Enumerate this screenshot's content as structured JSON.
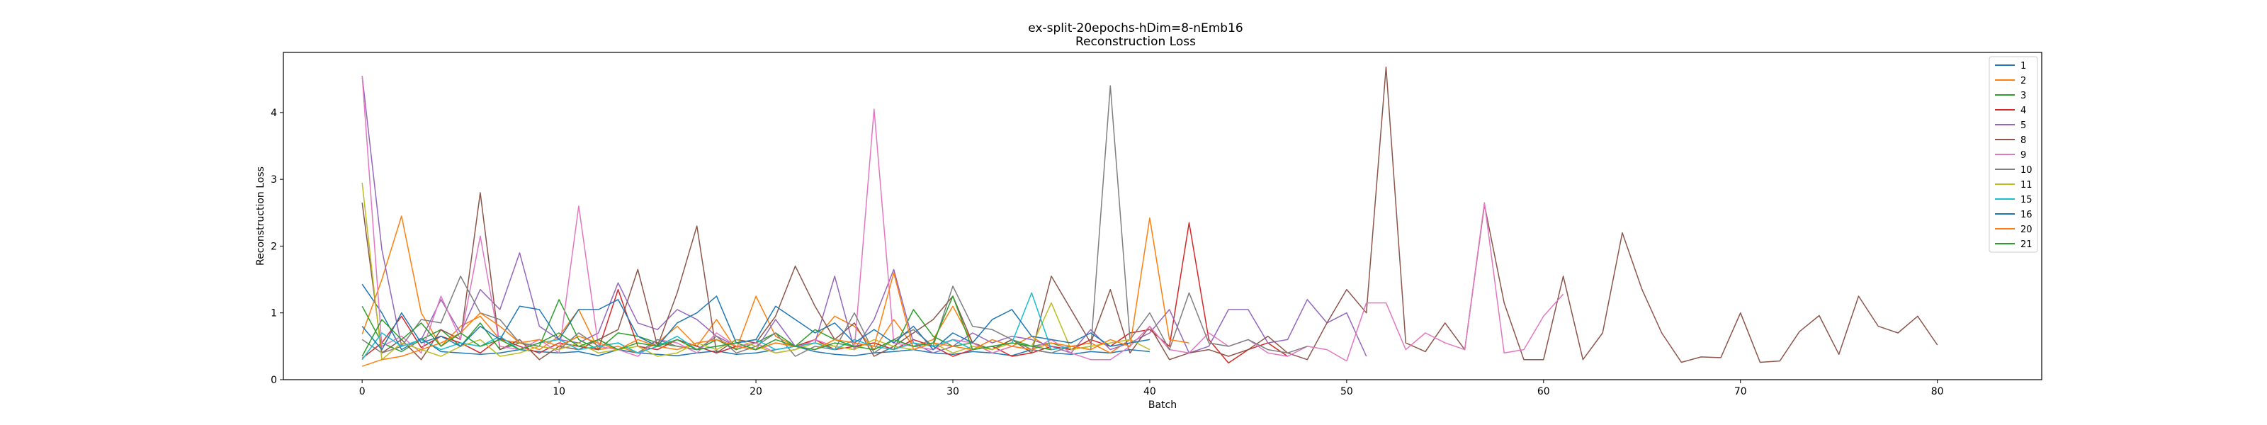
{
  "chart_data": {
    "type": "line",
    "title": "ex-split-20epochs-hDim=8-nEmb16",
    "subtitle": "Reconstruction Loss",
    "xlabel": "Batch",
    "ylabel": "Reconstruction Loss",
    "xlim": [
      -4,
      85.3
    ],
    "ylim": [
      0,
      4.9
    ],
    "xticks": [
      0,
      10,
      20,
      30,
      40,
      50,
      60,
      70,
      80
    ],
    "yticks": [
      0,
      1,
      2,
      3,
      4
    ],
    "grid": false,
    "legend_position": "top-right",
    "series": [
      {
        "name": "1",
        "color": "#1f77b4",
        "values": [
          1.43,
          1.0,
          0.45,
          0.62,
          0.42,
          0.4,
          0.38,
          0.4,
          0.45,
          0.42,
          0.4,
          0.42,
          0.36,
          0.45,
          0.4,
          0.38,
          0.36,
          0.4,
          0.43,
          0.38,
          0.4,
          0.45,
          0.5,
          0.42,
          0.38,
          0.36,
          0.4,
          0.42,
          0.45,
          0.4,
          0.38,
          0.42,
          0.4,
          0.36,
          0.45,
          0.4,
          0.38,
          0.42,
          0.4,
          0.45,
          0.42
        ]
      },
      {
        "name": "2",
        "color": "#ff7f0e",
        "values": [
          0.68,
          1.5,
          2.45,
          1.0,
          0.5,
          0.8,
          0.95,
          0.6,
          0.55,
          0.45,
          0.65,
          1.05,
          0.45,
          0.5,
          0.4,
          0.55,
          0.8,
          0.5,
          0.9,
          0.45,
          1.25,
          0.65,
          0.5,
          0.6,
          0.95,
          0.8,
          0.45,
          0.9,
          0.5,
          0.6,
          1.1,
          0.55,
          0.4,
          0.5,
          0.65,
          0.45,
          0.5,
          0.55,
          0.4,
          0.6
        ]
      },
      {
        "name": "3",
        "color": "#2ca02c",
        "values": [
          1.1,
          0.55,
          0.42,
          0.6,
          0.75,
          0.5,
          0.85,
          0.45,
          0.55,
          0.5,
          1.2,
          0.6,
          0.45,
          0.7,
          0.65,
          0.55,
          0.5,
          0.45,
          0.6,
          0.45,
          0.55,
          0.7,
          0.5,
          0.75,
          0.6,
          0.5,
          0.55,
          0.45,
          1.05,
          0.65,
          0.5,
          0.55,
          0.45,
          0.6,
          0.5,
          0.55,
          0.45,
          0.5
        ]
      },
      {
        "name": "4",
        "color": "#d62728",
        "values": [
          0.32,
          0.55,
          0.95,
          0.48,
          0.65,
          0.55,
          0.4,
          0.62,
          0.5,
          0.4,
          0.55,
          0.5,
          0.45,
          1.35,
          0.5,
          0.45,
          0.6,
          0.5,
          0.4,
          0.5,
          0.45,
          0.55,
          0.5,
          0.6,
          0.45,
          0.5,
          0.55,
          0.45,
          0.6,
          0.5,
          0.35,
          0.45,
          0.5,
          0.35,
          0.4,
          0.5,
          0.45,
          0.6,
          0.5,
          0.7,
          0.75,
          0.5,
          2.35,
          0.6,
          0.25,
          0.45,
          0.55,
          0.35
        ]
      },
      {
        "name": "5",
        "color": "#9467bd",
        "values": [
          4.55,
          1.95,
          0.5,
          0.6,
          1.2,
          0.7,
          1.35,
          1.05,
          1.9,
          0.8,
          0.6,
          0.55,
          0.7,
          1.45,
          0.85,
          0.75,
          1.05,
          0.9,
          0.65,
          0.5,
          0.45,
          0.9,
          0.5,
          0.55,
          1.55,
          0.45,
          0.9,
          1.65,
          0.55,
          0.4,
          0.5,
          0.7,
          0.55,
          0.65,
          0.6,
          0.5,
          0.4,
          0.75,
          0.45,
          0.55,
          0.7,
          1.05,
          0.4,
          0.5,
          1.05,
          1.05,
          0.55,
          0.6,
          1.2,
          0.85,
          1.0,
          0.35
        ]
      },
      {
        "name": "8",
        "color": "#8c564b",
        "values": [
          2.65,
          0.4,
          0.6,
          0.3,
          0.75,
          0.6,
          2.8,
          0.45,
          0.6,
          0.3,
          0.5,
          0.45,
          0.6,
          0.75,
          1.65,
          0.5,
          1.3,
          2.3,
          0.4,
          0.6,
          0.55,
          0.95,
          1.7,
          1.1,
          0.6,
          0.85,
          0.35,
          0.5,
          0.7,
          0.9,
          1.25,
          0.55,
          0.45,
          0.6,
          0.4,
          1.55,
          1.05,
          0.55,
          1.35,
          0.4,
          0.8,
          0.3,
          0.4,
          0.45,
          0.35,
          0.45,
          0.65,
          0.4,
          0.3,
          0.85,
          1.35,
          1.0,
          4.68,
          0.55,
          0.42,
          0.85,
          0.45,
          2.62,
          1.15,
          0.3,
          0.3,
          1.55,
          0.3,
          0.7,
          2.2,
          1.35,
          0.7,
          0.26,
          0.34,
          0.33,
          1.0,
          0.26,
          0.28,
          0.72,
          0.96,
          0.38,
          1.25,
          0.8,
          0.7,
          0.95,
          0.52
        ]
      },
      {
        "name": "9",
        "color": "#e377c2",
        "values": [
          4.55,
          0.5,
          0.65,
          0.4,
          1.25,
          0.6,
          2.15,
          0.5,
          0.45,
          0.6,
          0.4,
          2.6,
          0.5,
          0.45,
          0.35,
          0.6,
          0.55,
          0.4,
          0.7,
          0.5,
          0.55,
          0.4,
          0.45,
          0.6,
          0.5,
          0.45,
          4.05,
          0.55,
          0.5,
          0.45,
          0.6,
          0.55,
          0.4,
          0.5,
          0.45,
          0.6,
          0.4,
          0.3,
          0.3,
          0.5,
          0.8,
          0.45,
          0.4,
          0.7,
          0.5,
          0.6,
          0.4,
          0.35,
          0.5,
          0.45,
          0.28,
          1.15,
          1.15,
          0.45,
          0.7,
          0.55,
          0.45,
          2.65,
          0.4,
          0.45,
          0.95,
          1.28
        ]
      },
      {
        "name": "10",
        "color": "#7f7f7f",
        "values": [
          0.6,
          0.4,
          0.5,
          0.9,
          0.85,
          1.55,
          1.0,
          0.9,
          0.55,
          0.5,
          0.45,
          0.7,
          0.5,
          0.55,
          0.4,
          0.6,
          0.5,
          0.45,
          0.65,
          0.4,
          0.5,
          0.7,
          0.35,
          0.5,
          0.45,
          1.0,
          0.4,
          0.6,
          0.75,
          0.5,
          1.4,
          0.8,
          0.75,
          0.6,
          0.45,
          0.4,
          0.5,
          0.45,
          4.4,
          0.6,
          1.0,
          0.45,
          1.3,
          0.55,
          0.5,
          0.6,
          0.45,
          0.4,
          0.5
        ]
      },
      {
        "name": "11",
        "color": "#bcbd22",
        "values": [
          2.95,
          0.3,
          0.55,
          0.45,
          0.35,
          0.5,
          0.6,
          0.35,
          0.4,
          0.5,
          0.45,
          0.55,
          0.4,
          0.45,
          0.5,
          0.35,
          0.4,
          0.55,
          0.45,
          0.6,
          0.5,
          0.4,
          0.45,
          0.55,
          0.5,
          0.45,
          0.6,
          0.5,
          0.45,
          0.55,
          0.4,
          0.5,
          0.45,
          0.55,
          0.5,
          1.15,
          0.45,
          0.5,
          0.55,
          0.6,
          0.45
        ]
      },
      {
        "name": "15",
        "color": "#17becf",
        "values": [
          0.3,
          0.7,
          0.5,
          0.6,
          0.45,
          0.55,
          0.5,
          0.65,
          0.45,
          0.55,
          0.6,
          0.45,
          0.5,
          0.55,
          0.4,
          0.5,
          0.65,
          0.45,
          0.5,
          0.55,
          0.6,
          0.45,
          0.5,
          0.55,
          0.45,
          0.6,
          0.5,
          0.45,
          0.55,
          0.5,
          0.6,
          0.45,
          0.5,
          0.55,
          1.3,
          0.45,
          0.5
        ]
      },
      {
        "name": "16",
        "color": "#1f77b4",
        "values": [
          0.8,
          0.45,
          1.0,
          0.55,
          0.65,
          0.5,
          0.8,
          0.6,
          1.1,
          1.05,
          0.6,
          1.05,
          1.05,
          1.2,
          0.65,
          0.5,
          0.85,
          1.0,
          1.25,
          0.55,
          0.6,
          1.1,
          0.9,
          0.7,
          0.85,
          0.55,
          0.75,
          0.55,
          0.8,
          0.45,
          0.7,
          0.55,
          0.9,
          1.05,
          0.65,
          0.6,
          0.55,
          0.7,
          0.5,
          0.55,
          0.6
        ]
      },
      {
        "name": "20",
        "color": "#ff7f0e",
        "values": [
          0.2,
          0.3,
          0.35,
          0.45,
          0.55,
          0.7,
          1.0,
          0.8,
          0.55,
          0.6,
          0.5,
          0.65,
          0.55,
          0.45,
          0.6,
          0.5,
          0.45,
          0.55,
          0.6,
          0.5,
          0.45,
          0.55,
          0.5,
          0.45,
          0.6,
          0.55,
          0.5,
          1.6,
          0.45,
          0.55,
          0.5,
          0.45,
          0.6,
          0.5,
          0.45,
          0.55,
          0.5,
          0.45,
          0.6,
          0.5,
          2.42,
          0.6,
          0.55
        ]
      },
      {
        "name": "21",
        "color": "#2ca02c",
        "values": [
          0.35,
          0.9,
          0.6,
          0.85,
          0.5,
          0.7,
          0.5,
          0.6,
          0.45,
          0.55,
          0.7,
          0.5,
          0.6,
          0.45,
          0.55,
          0.5,
          0.6,
          0.45,
          0.5,
          0.55,
          0.45,
          0.6,
          0.5,
          0.45,
          0.55,
          0.5,
          0.45,
          0.6,
          0.5,
          0.55,
          1.25,
          0.45,
          0.5,
          0.55,
          0.5,
          0.45
        ]
      }
    ]
  }
}
